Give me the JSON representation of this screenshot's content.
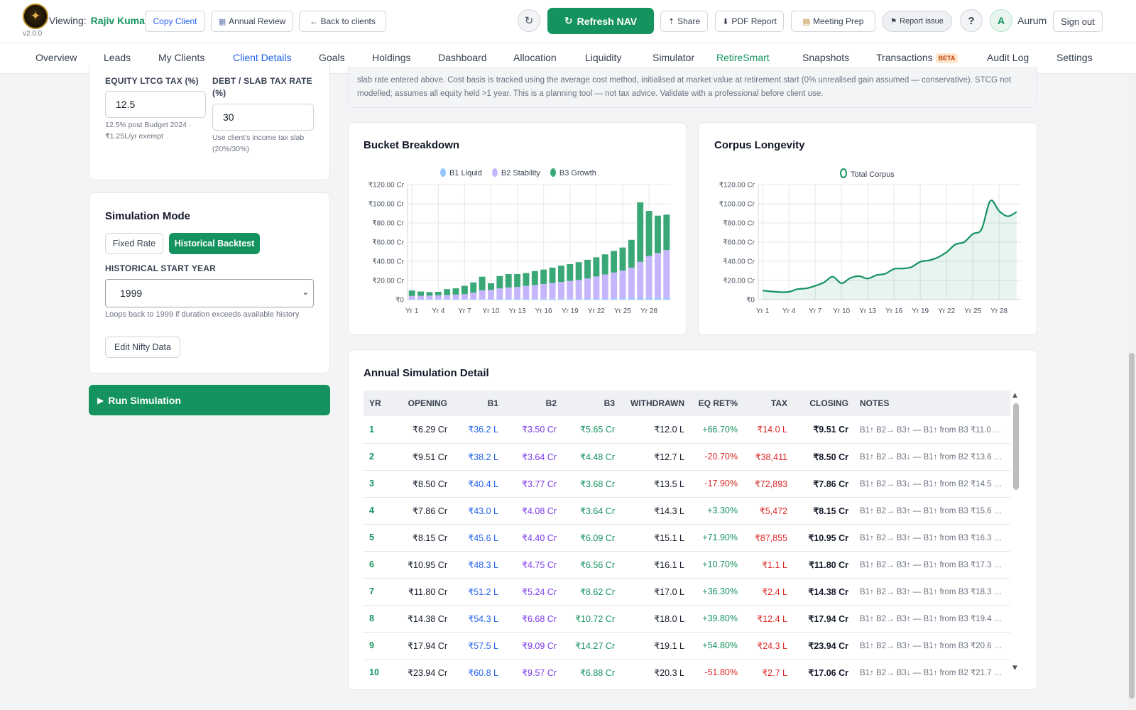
{
  "header": {
    "version": "v2.0.0",
    "viewing_label": "Viewing:",
    "client_name": "Rajiv Kumar",
    "copy_client": "Copy Client",
    "annual_review": "Annual Review",
    "back_to_clients": "← Back to clients",
    "refresh_nav": "Refresh NAV",
    "share": "Share",
    "pdf_report": "PDF Report",
    "meeting_prep": "Meeting Prep",
    "report_issue": "Report issue",
    "help": "?",
    "avatar_initial": "A",
    "user_name": "Aurum",
    "sign_out": "Sign out",
    "icons": {
      "refresh": "refresh-icon",
      "calendar": "calendar-icon",
      "share": "share-icon",
      "download": "download-icon",
      "clipboard": "clipboard-icon",
      "flag": "flag-icon"
    }
  },
  "nav": {
    "items": [
      "Overview",
      "Leads",
      "My Clients",
      "Client Details",
      "Goals",
      "Holdings",
      "Dashboard",
      "Allocation",
      "Liquidity",
      "Simulator",
      "RetireSmart",
      "Snapshots",
      "Transactions",
      "Audit Log",
      "Settings"
    ],
    "beta_badge": "BETA",
    "active": "RetireSmart",
    "highlighted": "Client Details"
  },
  "tax": {
    "ltcg_label": "EQUITY LTCG TAX (%)",
    "ltcg_value": "12.5",
    "ltcg_hint": "12.5% post Budget 2024 · ₹1.25L/yr exempt",
    "debt_label": "DEBT / SLAB TAX RATE (%)",
    "debt_value": "30",
    "debt_hint": "Use client's income tax slab (20%/30%)"
  },
  "simulation": {
    "title": "Simulation Mode",
    "fixed_rate": "Fixed Rate",
    "historical": "Historical Backtest",
    "selected_mode": "Historical Backtest",
    "start_year_label": "HISTORICAL START YEAR",
    "start_year": "1999",
    "start_year_hint": "Loops back to 1999 if duration exceeds available history",
    "edit_nifty": "Edit Nifty Data",
    "run": "Run Simulation"
  },
  "note": "slab rate entered above. Cost basis is tracked using the average cost method, initialised at market value at retirement start (0% unrealised gain assumed — conservative). STCG not modelled; assumes all equity held >1 year. This is a planning tool — not tax advice. Validate with a professional before client use.",
  "colors": {
    "brand_green": "#15935f",
    "b1": "#93c5fd",
    "b2": "#c4b5fd",
    "b3": "#3aa876",
    "b1_text": "#2563eb",
    "b2_text": "#7c3aed",
    "negative": "#dc2626"
  },
  "chart_data": [
    {
      "type": "bar",
      "stacked": true,
      "title": "Bucket Breakdown",
      "categories": [
        "Yr 1",
        "Yr 2",
        "Yr 3",
        "Yr 4",
        "Yr 5",
        "Yr 6",
        "Yr 7",
        "Yr 8",
        "Yr 9",
        "Yr 10",
        "Yr 11",
        "Yr 12",
        "Yr 13",
        "Yr 14",
        "Yr 15",
        "Yr 16",
        "Yr 17",
        "Yr 18",
        "Yr 19",
        "Yr 20",
        "Yr 21",
        "Yr 22",
        "Yr 23",
        "Yr 24",
        "Yr 25",
        "Yr 26",
        "Yr 27",
        "Yr 28",
        "Yr 29",
        "Yr 30"
      ],
      "x_tick_labels": [
        "Yr 1",
        "Yr 4",
        "Yr 7",
        "Yr 10",
        "Yr 13",
        "Yr 16",
        "Yr 19",
        "Yr 22",
        "Yr 25",
        "Yr 28"
      ],
      "y_tick_labels": [
        "₹0",
        "₹20.00 Cr",
        "₹40.00 Cr",
        "₹60.00 Cr",
        "₹80.00 Cr",
        "₹100.00 Cr",
        "₹120.00 Cr"
      ],
      "y_ticks": [
        0,
        20,
        40,
        60,
        80,
        100,
        120
      ],
      "ylim": [
        0,
        120
      ],
      "series": [
        {
          "name": "B1 Liquid",
          "values": [
            0.36,
            0.38,
            0.4,
            0.43,
            0.46,
            0.48,
            0.51,
            0.54,
            0.58,
            0.61,
            0.64,
            0.68,
            0.72,
            0.76,
            0.8,
            0.85,
            0.9,
            0.95,
            1.0,
            1.05,
            1.1,
            1.15,
            1.2,
            1.27,
            1.33,
            1.4,
            1.47,
            1.55,
            1.63,
            1.7
          ]
        },
        {
          "name": "B2 Stability",
          "values": [
            3.5,
            3.64,
            3.77,
            4.08,
            4.4,
            4.75,
            5.24,
            6.68,
            9.09,
            9.57,
            11.0,
            12.0,
            12.5,
            13.5,
            14.5,
            15.5,
            16.5,
            17.5,
            18.5,
            19.5,
            21.0,
            23.0,
            25.0,
            27.0,
            29.0,
            32.0,
            38.0,
            44.0,
            47.0,
            50.0
          ]
        },
        {
          "name": "B3 Growth",
          "values": [
            5.65,
            4.48,
            3.68,
            3.64,
            6.09,
            6.56,
            8.62,
            10.72,
            14.27,
            6.88,
            13.0,
            14.0,
            13.5,
            13.5,
            14.5,
            15.0,
            16.0,
            17.0,
            17.5,
            18.5,
            19.5,
            20.0,
            21.0,
            22.5,
            24.0,
            29.0,
            62.0,
            47.0,
            39.0,
            37.0
          ]
        }
      ]
    },
    {
      "type": "area",
      "title": "Corpus Longevity",
      "categories": [
        "Yr 1",
        "Yr 2",
        "Yr 3",
        "Yr 4",
        "Yr 5",
        "Yr 6",
        "Yr 7",
        "Yr 8",
        "Yr 9",
        "Yr 10",
        "Yr 11",
        "Yr 12",
        "Yr 13",
        "Yr 14",
        "Yr 15",
        "Yr 16",
        "Yr 17",
        "Yr 18",
        "Yr 19",
        "Yr 20",
        "Yr 21",
        "Yr 22",
        "Yr 23",
        "Yr 24",
        "Yr 25",
        "Yr 26",
        "Yr 27",
        "Yr 28",
        "Yr 29",
        "Yr 30"
      ],
      "x_tick_labels": [
        "Yr 1",
        "Yr 4",
        "Yr 7",
        "Yr 10",
        "Yr 13",
        "Yr 16",
        "Yr 19",
        "Yr 22",
        "Yr 25",
        "Yr 28"
      ],
      "y_tick_labels": [
        "₹0",
        "₹20.00 Cr",
        "₹40.00 Cr",
        "₹60.00 Cr",
        "₹80.00 Cr",
        "₹100.00 Cr",
        "₹120.00 Cr"
      ],
      "y_ticks": [
        0,
        20,
        40,
        60,
        80,
        100,
        120
      ],
      "ylim": [
        0,
        120
      ],
      "series": [
        {
          "name": "Total Corpus",
          "values": [
            9.51,
            8.5,
            7.86,
            8.15,
            10.95,
            11.8,
            14.38,
            17.94,
            23.94,
            17.06,
            22.5,
            24.5,
            22.0,
            25.5,
            27.0,
            32.0,
            32.5,
            34.0,
            39.5,
            41.0,
            44.0,
            49.5,
            57.5,
            60.0,
            68.5,
            73.5,
            103.0,
            92.5,
            87.0,
            91.5
          ]
        }
      ]
    }
  ],
  "table": {
    "title": "Annual Simulation Detail",
    "columns": [
      "YR",
      "OPENING",
      "B1",
      "B2",
      "B3",
      "WITHDRAWN",
      "EQ RET%",
      "TAX",
      "CLOSING",
      "NOTES"
    ],
    "rows": [
      [
        "1",
        "₹6.29 Cr",
        "₹36.2 L",
        "₹3.50 Cr",
        "₹5.65 Cr",
        "₹12.0 L",
        "+66.70%",
        "₹14.0 L",
        "₹9.51 Cr",
        "B1↑ B2→ B3↑ — B1↑ from B3 ₹11.0 L (..."
      ],
      [
        "2",
        "₹9.51 Cr",
        "₹38.2 L",
        "₹3.64 Cr",
        "₹4.48 Cr",
        "₹12.7 L",
        "-20.70%",
        "₹38,411",
        "₹8.50 Cr",
        "B1↑ B2→ B3↓ — B1↑ from B2 ₹13.6 L (..."
      ],
      [
        "3",
        "₹8.50 Cr",
        "₹40.4 L",
        "₹3.77 Cr",
        "₹3.68 Cr",
        "₹13.5 L",
        "-17.90%",
        "₹72,893",
        "₹7.86 Cr",
        "B1↑ B2→ B3↓ — B1↑ from B2 ₹14.5 L ..."
      ],
      [
        "4",
        "₹7.86 Cr",
        "₹43.0 L",
        "₹4.08 Cr",
        "₹3.64 Cr",
        "₹14.3 L",
        "+3.30%",
        "₹5,472",
        "₹8.15 Cr",
        "B1↑ B2→ B3↑ — B1↑ from B3 ₹15.6 L ..."
      ],
      [
        "5",
        "₹8.15 Cr",
        "₹45.6 L",
        "₹4.40 Cr",
        "₹6.09 Cr",
        "₹15.1 L",
        "+71.90%",
        "₹87,855",
        "₹10.95 Cr",
        "B1↑ B2→ B3↑ — B1↑ from B3 ₹16.3 L (..."
      ],
      [
        "6",
        "₹10.95 Cr",
        "₹48.3 L",
        "₹4.75 Cr",
        "₹6.56 Cr",
        "₹16.1 L",
        "+10.70%",
        "₹1.1 L",
        "₹11.80 Cr",
        "B1↑ B2→ B3↑ — B1↑ from B3 ₹17.3 L (..."
      ],
      [
        "7",
        "₹11.80 Cr",
        "₹51.2 L",
        "₹5.24 Cr",
        "₹8.62 Cr",
        "₹17.0 L",
        "+36.30%",
        "₹2.4 L",
        "₹14.38 Cr",
        "B1↑ B2→ B3↑ — B1↑ from B3 ₹18.3 L ..."
      ],
      [
        "8",
        "₹14.38 Cr",
        "₹54.3 L",
        "₹6.68 Cr",
        "₹10.72 Cr",
        "₹18.0 L",
        "+39.80%",
        "₹12.4 L",
        "₹17.94 Cr",
        "B1↑ B2→ B3↑ — B1↑ from B3 ₹19.4 L ..."
      ],
      [
        "9",
        "₹17.94 Cr",
        "₹57.5 L",
        "₹9.09 Cr",
        "₹14.27 Cr",
        "₹19.1 L",
        "+54.80%",
        "₹24.3 L",
        "₹23.94 Cr",
        "B1↑ B2→ B3↑ — B1↑ from B3 ₹20.6 L ..."
      ],
      [
        "10",
        "₹23.94 Cr",
        "₹60.8 L",
        "₹9.57 Cr",
        "₹6.88 Cr",
        "₹20.3 L",
        "-51.80%",
        "₹2.7 L",
        "₹17.06 Cr",
        "B1↑ B2→ B3↓ — B1↑ from B2 ₹21.7 L (..."
      ]
    ]
  }
}
